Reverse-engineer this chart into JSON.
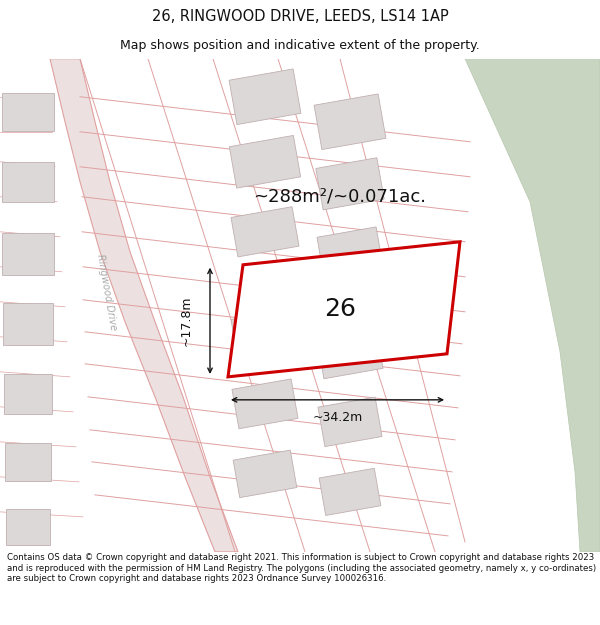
{
  "title_line1": "26, RINGWOOD DRIVE, LEEDS, LS14 1AP",
  "title_line2": "Map shows position and indicative extent of the property.",
  "footer_text": "Contains OS data © Crown copyright and database right 2021. This information is subject to Crown copyright and database rights 2023 and is reproduced with the permission of HM Land Registry. The polygons (including the associated geometry, namely x, y co-ordinates) are subject to Crown copyright and database rights 2023 Ordnance Survey 100026316.",
  "map_bg": "#f7f2f2",
  "road_color": "#e0a0a0",
  "road_fill": "#ede0e0",
  "building_fill": "#ddd8d8",
  "building_edge": "#c0b0b0",
  "plot_color": "#cc0000",
  "plot_fill": "#ffffff",
  "green_fill": "#c8d5c0",
  "green_edge": "#b8c8b0",
  "annotation_color": "#111111",
  "area_text": "~288m²/~0.071ac.",
  "width_text": "~34.2m",
  "height_text": "~17.8m",
  "number_text": "26",
  "road_label": "Ringwood Drive",
  "title_fontsize": 10.5,
  "subtitle_fontsize": 9,
  "footer_fontsize": 6.2,
  "area_fontsize": 13,
  "dim_fontsize": 9,
  "num_fontsize": 18
}
